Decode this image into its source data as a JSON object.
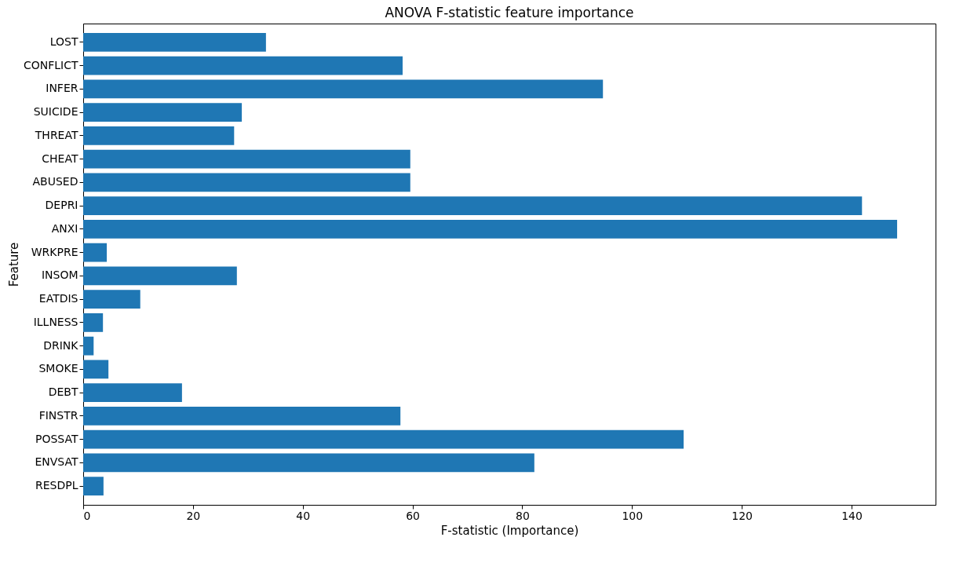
{
  "chart_data": {
    "type": "bar",
    "orientation": "horizontal",
    "title": "ANOVA F-statistic feature importance",
    "xlabel": "F-statistic (Importance)",
    "ylabel": "Feature",
    "categories": [
      "LOST",
      "CONFLICT",
      "INFER",
      "SUICIDE",
      "THREAT",
      "CHEAT",
      "ABUSED",
      "DEPRI",
      "ANXI",
      "WRKPRE",
      "INSOM",
      "EATDIS",
      "ILLNESS",
      "DRINK",
      "SMOKE",
      "DEBT",
      "FINSTR",
      "POSSAT",
      "ENVSAT",
      "RESDPL"
    ],
    "values": [
      33.3,
      58.2,
      94.7,
      28.9,
      27.5,
      59.6,
      59.6,
      141.9,
      148.3,
      4.3,
      28.0,
      10.4,
      3.6,
      1.9,
      4.6,
      18.0,
      57.8,
      109.4,
      82.2,
      3.7
    ],
    "color": "#1f77b4",
    "xlim": [
      0,
      155.3
    ],
    "xticks": [
      0,
      20,
      40,
      60,
      80,
      100,
      120,
      140
    ],
    "grid": false
  }
}
